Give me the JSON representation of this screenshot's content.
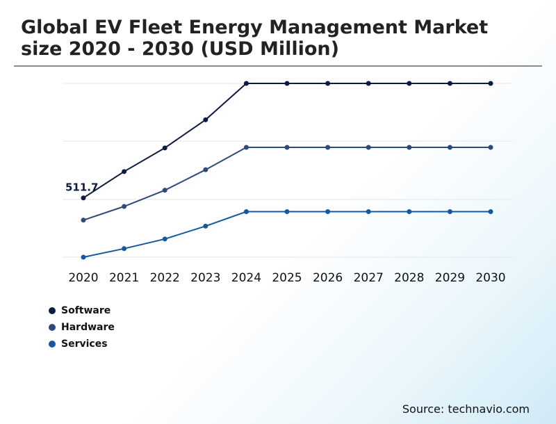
{
  "title": "Global EV Fleet Energy Management Market size 2020 - 2030 (USD Million)",
  "source": "Source: technavio.com",
  "colors": {
    "software": "#0d1b3e",
    "hardware": "#2e4a7a",
    "services": "#1558a0",
    "grid": "#e6e6e6"
  },
  "chart_data": {
    "type": "line",
    "title": "Global EV Fleet Energy Management Market size 2020 - 2030 (USD Million)",
    "xlabel": "",
    "ylabel": "",
    "categories": [
      "2020",
      "2021",
      "2022",
      "2023",
      "2024",
      "2025",
      "2026",
      "2027",
      "2028",
      "2029",
      "2030"
    ],
    "ylim": [
      0,
      1500
    ],
    "grid": true,
    "legend_position": "bottom-left",
    "annotations": [
      {
        "series": "Software",
        "category": "2020",
        "text": "511.7"
      }
    ],
    "series": [
      {
        "name": "Software",
        "color": "#0d1b3e",
        "values": [
          511.7,
          739,
          943,
          1186,
          1500,
          1500,
          1500,
          1500,
          1500,
          1500,
          1500
        ]
      },
      {
        "name": "Hardware",
        "color": "#2e4a7a",
        "values": [
          320,
          438,
          578,
          755,
          948,
          948,
          948,
          948,
          948,
          948,
          948
        ]
      },
      {
        "name": "Services",
        "color": "#1558a0",
        "values": [
          0,
          74,
          157,
          268,
          393,
          393,
          393,
          393,
          393,
          393,
          393
        ]
      }
    ]
  }
}
